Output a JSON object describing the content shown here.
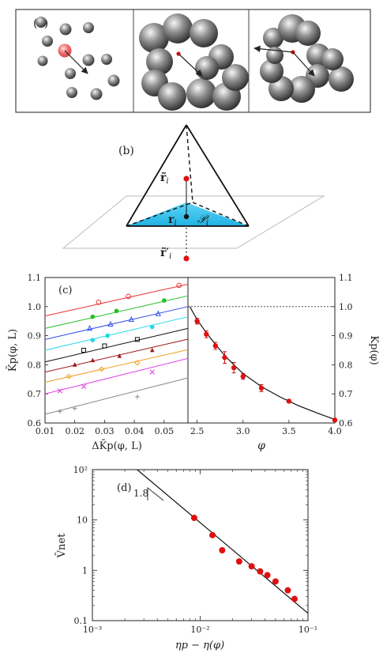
{
  "panel_a": {
    "label": "(a)",
    "colors": {
      "sphere": "#8a8a8a",
      "tracer": "#e85a5a",
      "arrow": "#222222",
      "border": "#444444"
    }
  },
  "panel_b": {
    "label": "(b)",
    "r_tilde": "r̃",
    "r_tilde_sub": "i",
    "r": "r",
    "r_sub": "i",
    "r_tilde_prime": "r̃′",
    "r_tilde_prime_sub": "i",
    "facet": "𝒫",
    "facet_sub": "i",
    "colors": {
      "facet": "#3cc6ee",
      "point": "#e01010",
      "plane": "#bbbbbb"
    }
  },
  "chart_data": [
    {
      "panel": "(c-left)",
      "label": "(c)",
      "type": "scatter",
      "xlabel": "ΔK̄p(φ, L)",
      "ylabel": "K̄p(φ, L)",
      "xlim": [
        0.01,
        0.058
      ],
      "ylim": [
        0.6,
        1.1
      ],
      "xticks": [
        "0.01",
        "0.02",
        "0.03",
        "0.04",
        "0.05"
      ],
      "yticks": [
        "0.6",
        "0.7",
        "0.8",
        "0.9",
        "1.0",
        "1.1"
      ],
      "series": [
        {
          "color": "#e83030",
          "marker": "open-circle",
          "fit": [
            0.968,
            1.077
          ],
          "points": [
            [
              0.028,
              1.015
            ],
            [
              0.038,
              1.035
            ],
            [
              0.055,
              1.073
            ]
          ]
        },
        {
          "color": "#22c022",
          "marker": "filled-circle",
          "fit": [
            0.925,
            1.037
          ],
          "points": [
            [
              0.026,
              0.965
            ],
            [
              0.034,
              0.985
            ],
            [
              0.05,
              1.021
            ]
          ]
        },
        {
          "color": "#3050e8",
          "marker": "open-triangle",
          "fit": [
            0.887,
            1.0
          ],
          "points": [
            [
              0.025,
              0.925
            ],
            [
              0.032,
              0.939
            ],
            [
              0.039,
              0.955
            ],
            [
              0.048,
              0.975
            ]
          ]
        },
        {
          "color": "#20d8e8",
          "marker": "filled-circle",
          "fit": [
            0.85,
            0.965
          ],
          "points": [
            [
              0.026,
              0.885
            ],
            [
              0.031,
              0.9
            ],
            [
              0.046,
              0.93
            ]
          ]
        },
        {
          "color": "#111111",
          "marker": "open-square",
          "fit": [
            0.81,
            0.925
          ],
          "points": [
            [
              0.023,
              0.85
            ],
            [
              0.03,
              0.865
            ],
            [
              0.041,
              0.887
            ]
          ]
        },
        {
          "color": "#a01818",
          "marker": "filled-triangle",
          "fit": [
            0.775,
            0.888
          ],
          "points": [
            [
              0.02,
              0.8
            ],
            [
              0.026,
              0.815
            ],
            [
              0.035,
              0.83
            ],
            [
              0.046,
              0.85
            ]
          ]
        },
        {
          "color": "#f0a020",
          "marker": "open-diamond",
          "fit": [
            0.74,
            0.852
          ],
          "points": [
            [
              0.018,
              0.76
            ],
            [
              0.029,
              0.785
            ],
            [
              0.041,
              0.807
            ]
          ]
        },
        {
          "color": "#e030e0",
          "marker": "x",
          "fit": [
            0.7,
            0.822
          ],
          "points": [
            [
              0.015,
              0.71
            ],
            [
              0.023,
              0.725
            ],
            [
              0.046,
              0.775
            ]
          ]
        },
        {
          "color": "#888888",
          "marker": "plus",
          "fit": [
            0.63,
            0.755
          ],
          "points": [
            [
              0.015,
              0.64
            ],
            [
              0.02,
              0.65
            ],
            [
              0.041,
              0.69
            ]
          ]
        }
      ]
    },
    {
      "panel": "(c-right)",
      "type": "scatter",
      "xlabel": "φ",
      "ylabel": "Kp(φ)",
      "xlim": [
        2.4,
        4.0
      ],
      "ylim": [
        0.6,
        1.1
      ],
      "xticks": [
        "2.5",
        "3.0",
        "3.5",
        "4.0"
      ],
      "yticks": [
        "0.6",
        "0.7",
        "0.8",
        "0.9",
        "1.0",
        "1.1"
      ],
      "reference_line": 1.0,
      "points": [
        {
          "x": 2.5,
          "y": 0.95,
          "err": 0.01
        },
        {
          "x": 2.6,
          "y": 0.905,
          "err": 0.012
        },
        {
          "x": 2.7,
          "y": 0.865,
          "err": 0.012
        },
        {
          "x": 2.8,
          "y": 0.825,
          "err": 0.02
        },
        {
          "x": 2.9,
          "y": 0.79,
          "err": 0.018
        },
        {
          "x": 3.0,
          "y": 0.76,
          "err": 0.01
        },
        {
          "x": 3.2,
          "y": 0.72,
          "err": 0.012
        },
        {
          "x": 3.5,
          "y": 0.675,
          "err": 0.005
        },
        {
          "x": 4.0,
          "y": 0.61,
          "err": 0.005
        }
      ],
      "fit": [
        [
          2.42,
          1.0
        ],
        [
          2.5,
          0.955
        ],
        [
          2.6,
          0.91
        ],
        [
          2.7,
          0.87
        ],
        [
          2.8,
          0.832
        ],
        [
          2.9,
          0.8
        ],
        [
          3.0,
          0.77
        ],
        [
          3.2,
          0.725
        ],
        [
          3.4,
          0.69
        ],
        [
          3.6,
          0.66
        ],
        [
          3.8,
          0.635
        ],
        [
          4.0,
          0.612
        ]
      ]
    },
    {
      "panel": "(d)",
      "label": "(d)",
      "type": "scatter",
      "xscale": "log",
      "yscale": "log",
      "xlabel": "ηp − η(φ)",
      "ylabel": "V̄net",
      "xlim": [
        0.001,
        0.1
      ],
      "ylim": [
        0.1,
        100
      ],
      "xticks": [
        "10⁻³",
        "10⁻²",
        "10⁻¹"
      ],
      "yticks": [
        "0.1",
        "1",
        "10",
        "10²"
      ],
      "slope_label": "1.8",
      "points": [
        [
          0.0088,
          11
        ],
        [
          0.013,
          5
        ],
        [
          0.016,
          2.5
        ],
        [
          0.023,
          1.5
        ],
        [
          0.03,
          1.2
        ],
        [
          0.036,
          0.95
        ],
        [
          0.042,
          0.8
        ],
        [
          0.05,
          0.6
        ],
        [
          0.065,
          0.4
        ],
        [
          0.075,
          0.27
        ]
      ],
      "fit": [
        [
          0.0026,
          100
        ],
        [
          0.1,
          0.14
        ]
      ]
    }
  ]
}
